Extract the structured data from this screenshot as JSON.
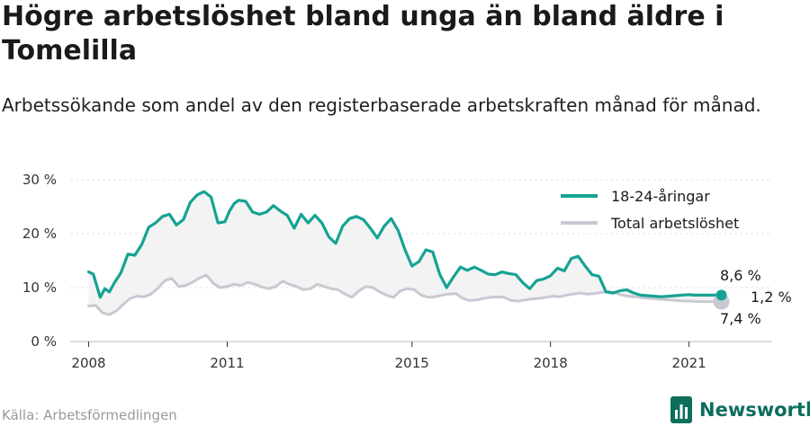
{
  "header": {
    "title": "Högre arbetslöshet bland unga än bland äldre i Tomelilla",
    "subtitle": "Arbetssökande som andel av den registerbaserade arbetskraften månad för månad."
  },
  "footer": {
    "source": "Källa: Arbetsförmedlingen",
    "brand": "Newsworthy"
  },
  "colors": {
    "youth": "#14a393",
    "total": "#c9c9d3",
    "gap_fill": "#f3f3f3",
    "brand": "#0d6e5c"
  },
  "chart_data": {
    "type": "line",
    "title": "Högre arbetslöshet bland unga än bland äldre i Tomelilla",
    "subtitle": "Arbetssökande som andel av den registerbaserade arbetskraften månad för månad.",
    "xlabel": "",
    "ylabel": "",
    "ylim": [
      0,
      30
    ],
    "xlim": [
      2007.6,
      2022.8
    ],
    "y_ticks": [
      0,
      10,
      20,
      30
    ],
    "y_tick_labels": [
      "0 %",
      "10 %",
      "20 %",
      "30 %"
    ],
    "x_ticks": [
      2008,
      2011,
      2015,
      2018,
      2021
    ],
    "x_tick_labels": [
      "2008",
      "2011",
      "2015",
      "2018",
      "2021"
    ],
    "grid": true,
    "legend_position": "top-right",
    "gap_shaded": true,
    "series": [
      {
        "name": "18-24-åringar",
        "x": [
          2008.0,
          2008.1,
          2008.25,
          2008.35,
          2008.45,
          2008.55,
          2008.7,
          2008.85,
          2009.0,
          2009.15,
          2009.3,
          2009.45,
          2009.6,
          2009.75,
          2009.9,
          2010.05,
          2010.2,
          2010.35,
          2010.5,
          2010.65,
          2010.8,
          2010.95,
          2011.05,
          2011.15,
          2011.25,
          2011.4,
          2011.55,
          2011.7,
          2011.85,
          2012.0,
          2012.15,
          2012.3,
          2012.45,
          2012.6,
          2012.75,
          2012.9,
          2013.05,
          2013.2,
          2013.35,
          2013.5,
          2013.65,
          2013.8,
          2013.95,
          2014.1,
          2014.25,
          2014.4,
          2014.55,
          2014.7,
          2014.85,
          2015.0,
          2015.15,
          2015.3,
          2015.45,
          2015.6,
          2015.75,
          2015.9,
          2016.05,
          2016.2,
          2016.35,
          2016.5,
          2016.65,
          2016.8,
          2016.95,
          2017.1,
          2017.25,
          2017.4,
          2017.55,
          2017.7,
          2017.85,
          2018.0,
          2018.15,
          2018.3,
          2018.45,
          2018.6,
          2018.75,
          2018.9,
          2019.05,
          2019.2,
          2019.35,
          2019.5,
          2019.65,
          2019.8,
          2019.95,
          2020.1,
          2020.25,
          2020.4,
          2020.55,
          2020.7,
          2020.85,
          2021.0,
          2021.1,
          2021.2,
          2021.3,
          2021.4,
          2021.5,
          2021.6,
          2021.7
        ],
        "values": [
          12.9,
          12.5,
          8.2,
          9.8,
          9.2,
          10.8,
          12.8,
          16.2,
          16.0,
          18.0,
          21.2,
          22.0,
          23.2,
          23.6,
          21.6,
          22.6,
          25.8,
          27.2,
          27.8,
          26.8,
          22.0,
          22.2,
          24.2,
          25.6,
          26.2,
          26.0,
          24.0,
          23.6,
          24.0,
          25.2,
          24.2,
          23.4,
          21.0,
          23.6,
          22.0,
          23.4,
          22.0,
          19.4,
          18.2,
          21.4,
          22.8,
          23.2,
          22.6,
          21.0,
          19.2,
          21.4,
          22.8,
          20.6,
          17.0,
          14.0,
          14.8,
          17.0,
          16.6,
          12.5,
          10.0,
          12.0,
          13.8,
          13.2,
          13.8,
          13.2,
          12.5,
          12.4,
          12.9,
          12.6,
          12.4,
          10.9,
          9.8,
          11.3,
          11.6,
          12.2,
          13.6,
          13.1,
          15.4,
          15.8,
          14.0,
          12.4,
          12.1,
          9.2,
          9.0,
          9.4,
          9.6,
          9.0,
          8.6,
          8.5,
          8.4,
          8.3,
          8.4,
          8.5,
          8.6,
          8.7,
          8.6,
          8.6,
          8.6,
          8.6,
          8.6,
          8.6,
          8.6
        ],
        "end_label": "8,6 %",
        "color": "#14a393"
      },
      {
        "name": "Total arbetslöshet",
        "x": [
          2008.0,
          2008.15,
          2008.3,
          2008.45,
          2008.6,
          2008.75,
          2008.9,
          2009.05,
          2009.2,
          2009.35,
          2009.5,
          2009.65,
          2009.8,
          2009.95,
          2010.1,
          2010.25,
          2010.4,
          2010.55,
          2010.7,
          2010.85,
          2011.0,
          2011.15,
          2011.3,
          2011.45,
          2011.6,
          2011.75,
          2011.9,
          2012.05,
          2012.2,
          2012.35,
          2012.5,
          2012.65,
          2012.8,
          2012.95,
          2013.1,
          2013.25,
          2013.4,
          2013.55,
          2013.7,
          2013.85,
          2014.0,
          2014.15,
          2014.3,
          2014.45,
          2014.6,
          2014.75,
          2014.9,
          2015.05,
          2015.2,
          2015.35,
          2015.5,
          2015.65,
          2015.8,
          2015.95,
          2016.1,
          2016.25,
          2016.4,
          2016.55,
          2016.7,
          2016.85,
          2017.0,
          2017.15,
          2017.3,
          2017.45,
          2017.6,
          2017.75,
          2017.9,
          2018.05,
          2018.2,
          2018.35,
          2018.5,
          2018.65,
          2018.8,
          2018.95,
          2019.1,
          2019.25,
          2019.4,
          2019.55,
          2019.7,
          2019.85,
          2020.0,
          2020.15,
          2020.3,
          2020.45,
          2020.6,
          2020.75,
          2020.9,
          2021.05,
          2021.2,
          2021.35,
          2021.5,
          2021.7
        ],
        "values": [
          6.6,
          6.7,
          5.3,
          5.0,
          5.7,
          6.9,
          8.0,
          8.4,
          8.3,
          8.8,
          9.9,
          11.3,
          11.7,
          10.2,
          10.4,
          11.0,
          11.8,
          12.3,
          10.8,
          10.0,
          10.2,
          10.6,
          10.4,
          11.0,
          10.6,
          10.1,
          9.8,
          10.2,
          11.2,
          10.6,
          10.2,
          9.6,
          9.8,
          10.6,
          10.2,
          9.8,
          9.6,
          8.8,
          8.2,
          9.4,
          10.2,
          10.0,
          9.2,
          8.6,
          8.2,
          9.4,
          9.8,
          9.6,
          8.6,
          8.2,
          8.3,
          8.6,
          8.8,
          8.9,
          8.0,
          7.6,
          7.7,
          8.0,
          8.2,
          8.3,
          8.2,
          7.6,
          7.5,
          7.7,
          7.9,
          8.0,
          8.2,
          8.4,
          8.3,
          8.6,
          8.8,
          9.0,
          8.8,
          8.9,
          9.1,
          9.3,
          9.0,
          8.6,
          8.4,
          8.3,
          8.1,
          8.0,
          7.9,
          7.8,
          7.7,
          7.6,
          7.5,
          7.5,
          7.4,
          7.4,
          7.4,
          7.4
        ],
        "end_label": "7,4 %",
        "color": "#c9c9d3"
      }
    ],
    "annotations": [
      {
        "text": "8,6 %"
      },
      {
        "text": "7,4 %"
      },
      {
        "text": "1,2 %"
      }
    ]
  }
}
